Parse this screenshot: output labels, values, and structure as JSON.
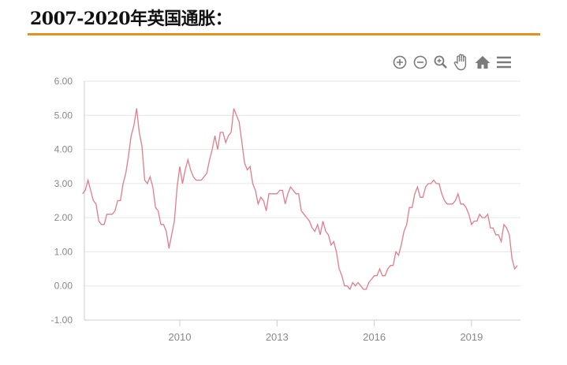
{
  "title": "2007-2020年英国通胀：",
  "colors": {
    "accent_rule": "#e8901e",
    "line": "#e27c8a",
    "grid": "#e6e6e6",
    "axis_text": "#888888",
    "toolbar_icon": "#7a7a7a"
  },
  "toolbar": {
    "icons": [
      "zoom-in-icon",
      "zoom-out-icon",
      "magnify-icon",
      "pan-hand-icon",
      "home-icon",
      "menu-icon"
    ]
  },
  "chart_data": {
    "type": "line",
    "title": "",
    "xlabel": "",
    "ylabel": "",
    "ylim": [
      -1,
      6
    ],
    "xlim": [
      "2007-01",
      "2020-07"
    ],
    "grid": true,
    "y_ticks": [
      "-1.00",
      "0.00",
      "1.00",
      "2.00",
      "3.00",
      "4.00",
      "5.00",
      "6.00"
    ],
    "x_ticks": [
      "2010",
      "2013",
      "2016",
      "2019"
    ],
    "x_start": "2007-01",
    "frequency": "monthly",
    "values": [
      2.7,
      2.8,
      3.1,
      2.8,
      2.5,
      2.4,
      1.9,
      1.8,
      1.8,
      2.1,
      2.1,
      2.1,
      2.2,
      2.5,
      2.5,
      3.0,
      3.3,
      3.8,
      4.4,
      4.7,
      5.2,
      4.5,
      4.1,
      3.1,
      3.0,
      3.2,
      2.9,
      2.3,
      2.2,
      1.8,
      1.8,
      1.6,
      1.1,
      1.5,
      1.9,
      2.9,
      3.5,
      3.0,
      3.4,
      3.7,
      3.4,
      3.2,
      3.1,
      3.1,
      3.1,
      3.2,
      3.3,
      3.7,
      4.0,
      4.4,
      4.0,
      4.5,
      4.5,
      4.2,
      4.4,
      4.5,
      5.2,
      5.0,
      4.8,
      4.2,
      3.6,
      3.4,
      3.5,
      3.0,
      2.8,
      2.4,
      2.6,
      2.5,
      2.2,
      2.7,
      2.7,
      2.7,
      2.7,
      2.8,
      2.8,
      2.4,
      2.7,
      2.9,
      2.8,
      2.7,
      2.7,
      2.2,
      2.1,
      2.0,
      1.9,
      1.7,
      1.6,
      1.8,
      1.5,
      1.9,
      1.6,
      1.5,
      1.2,
      1.3,
      1.0,
      0.5,
      0.3,
      0.0,
      0.0,
      -0.1,
      0.1,
      0.0,
      0.1,
      0.0,
      -0.1,
      -0.1,
      0.1,
      0.2,
      0.3,
      0.3,
      0.5,
      0.3,
      0.3,
      0.5,
      0.6,
      0.6,
      1.0,
      0.9,
      1.2,
      1.6,
      1.8,
      2.3,
      2.3,
      2.7,
      2.9,
      2.6,
      2.6,
      2.9,
      3.0,
      3.0,
      3.1,
      3.0,
      3.0,
      2.7,
      2.5,
      2.4,
      2.4,
      2.4,
      2.5,
      2.7,
      2.4,
      2.4,
      2.3,
      2.1,
      1.8,
      1.9,
      1.9,
      2.1,
      2.0,
      2.0,
      2.1,
      1.7,
      1.7,
      1.5,
      1.5,
      1.3,
      1.8,
      1.7,
      1.5,
      0.8,
      0.5,
      0.6
    ]
  }
}
